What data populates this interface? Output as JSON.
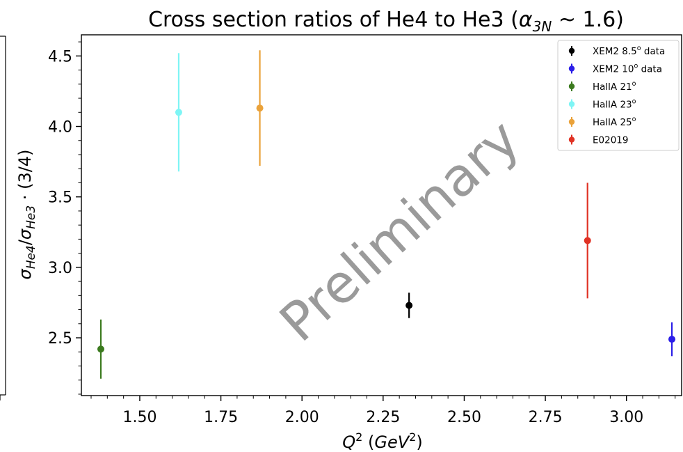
{
  "chart_data": {
    "type": "scatter",
    "title": "Cross section ratios of He4 to He3 (α₃ₙ ~ 1.6)",
    "title_parts": {
      "main": "Cross section ratios of He4 to He3 (",
      "alpha": "α",
      "alpha_sub": "3N",
      "rest": " ~ 1.6)"
    },
    "xlabel": "Q² (GeV²)",
    "xlabel_parts": {
      "q": "Q",
      "q_sup": "2",
      "mid": " (",
      "unit": "GeV",
      "unit_sup": "2",
      "end": ")"
    },
    "ylabel": "σHe4/σHe3 · (3/4)",
    "ylabel_parts": {
      "sigma1": "σ",
      "sub1": "He4",
      "slash": "/",
      "sigma2": "σ",
      "sub2": "He3",
      "rest": " · (3/4)"
    },
    "xlim": [
      1.32,
      3.17
    ],
    "ylim": [
      2.09,
      4.65
    ],
    "x_ticks": [
      "1.50",
      "1.75",
      "2.00",
      "2.25",
      "2.50",
      "2.75",
      "3.00"
    ],
    "x_tick_values": [
      1.5,
      1.75,
      2.0,
      2.25,
      2.5,
      2.75,
      3.0
    ],
    "y_ticks": [
      "2.5",
      "3.0",
      "3.5",
      "4.0",
      "4.5"
    ],
    "y_tick_values": [
      2.5,
      3.0,
      3.5,
      4.0,
      4.5
    ],
    "legend_position": "top-right",
    "grid": false,
    "watermark": "Preliminary",
    "series": [
      {
        "name": "XEM2 8.5",
        "name_sup": "o",
        "name_suffix": " data",
        "color": "#000000",
        "x": 2.33,
        "y": 2.73,
        "err": 0.09
      },
      {
        "name": "XEM2 10",
        "name_sup": "o",
        "name_suffix": " data",
        "color": "#2b1ee8",
        "x": 3.14,
        "y": 2.49,
        "err": 0.12
      },
      {
        "name": "HallA 21",
        "name_sup": "o",
        "name_suffix": "",
        "color": "#3b7a1e",
        "x": 1.38,
        "y": 2.42,
        "err": 0.21
      },
      {
        "name": "HallA 23",
        "name_sup": "o",
        "name_suffix": "",
        "color": "#7ef5f5",
        "x": 1.62,
        "y": 4.1,
        "err": 0.42
      },
      {
        "name": "HallA 25",
        "name_sup": "o",
        "name_suffix": "",
        "color": "#eaa23a",
        "x": 1.87,
        "y": 4.13,
        "err": 0.41
      },
      {
        "name": "E02019",
        "name_sup": "",
        "name_suffix": "",
        "color": "#e03224",
        "x": 2.88,
        "y": 3.19,
        "err": 0.41
      }
    ]
  }
}
